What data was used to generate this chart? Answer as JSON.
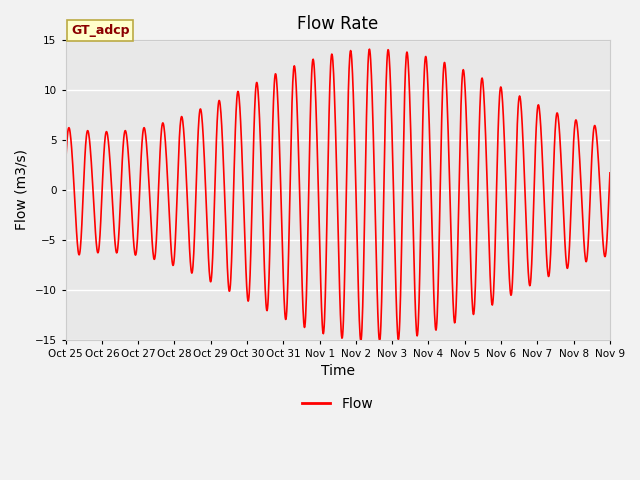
{
  "title": "Flow Rate",
  "xlabel": "Time",
  "ylabel": "Flow (m3/s)",
  "ylim": [
    -15,
    15
  ],
  "yticks": [
    -15,
    -10,
    -5,
    0,
    5,
    10,
    15
  ],
  "line_color": "#FF0000",
  "line_width": 1.2,
  "bg_color": "#E8E8E8",
  "fig_bg_color": "#F2F2F2",
  "annotation_text": "GT_adcp",
  "annotation_bg": "#FFFFCC",
  "annotation_border": "#BBAA44",
  "legend_label": "Flow",
  "xtick_labels": [
    "Oct 25",
    "Oct 26",
    "Oct 27",
    "Oct 28",
    "Oct 29",
    "Oct 30",
    "Oct 31",
    "Nov 1",
    "Nov 2",
    "Nov 3",
    "Nov 4",
    "Nov 5",
    "Nov 6",
    "Nov 7",
    "Nov 8",
    "Nov 9"
  ],
  "grid_color": "#FFFFFF",
  "tidal_period_hours": 12.42,
  "spring_peak_day": 8.5,
  "neap_day": 12.5
}
